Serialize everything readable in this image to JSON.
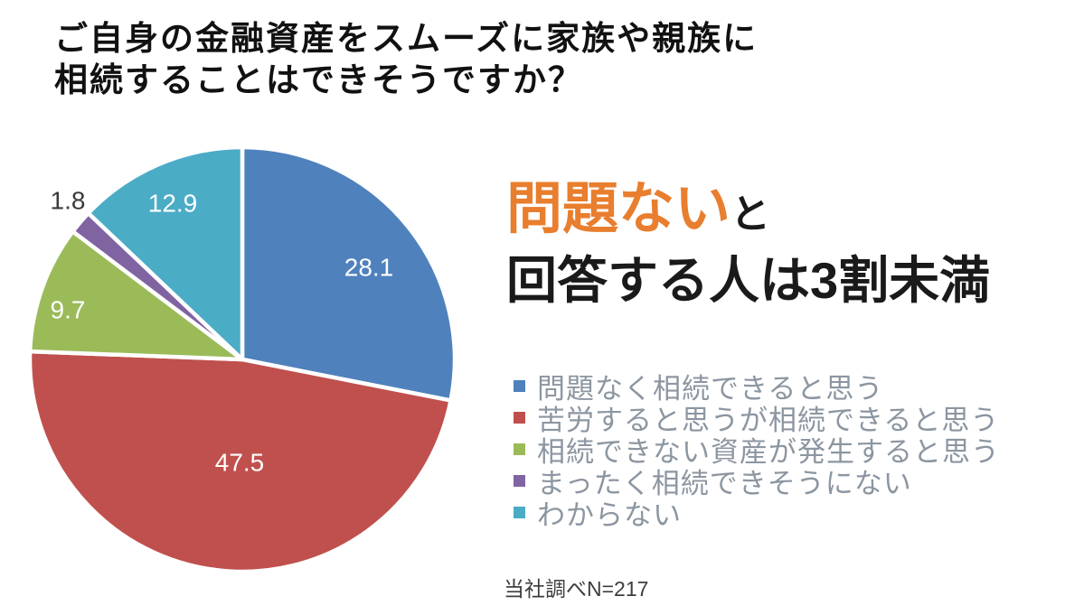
{
  "title": {
    "line1": "ご自身の金融資産をスムーズに家族や親族に",
    "line2": "相続することはできそうですか？"
  },
  "headline": {
    "highlight": "問題ない",
    "highlight_color": "#E87E2E",
    "connector": "と",
    "line2": "回答する人は3割未満"
  },
  "footnote": "当社調べN=217",
  "chart_data": {
    "type": "pie",
    "title": "ご自身の金融資産をスムーズに家族や親族に相続することはできそうですか？",
    "units": "percent",
    "start_angle_deg": 0,
    "direction": "clockwise",
    "legend_position": "right",
    "slice_border_color": "#ffffff",
    "slices": [
      {
        "label": "問題なく相続できると思う",
        "value": 28.1,
        "data_label": "28.1",
        "color": "#4F81BD",
        "data_label_color": "#ffffff",
        "label_inside": true
      },
      {
        "label": "苦労すると思うが相続できると思う",
        "value": 47.5,
        "data_label": "47.5",
        "color": "#C0504D",
        "data_label_color": "#ffffff",
        "label_inside": true
      },
      {
        "label": "相続できない資産が発生すると思う",
        "value": 9.7,
        "data_label": "9.7",
        "color": "#9BBB59",
        "data_label_color": "#ffffff",
        "label_inside": true
      },
      {
        "label": "まったく相続できそうにない",
        "value": 1.8,
        "data_label": "1.8",
        "color": "#8064A2",
        "data_label_color": "#3a3a3a",
        "label_inside": false
      },
      {
        "label": "わからない",
        "value": 12.9,
        "data_label": "12.9",
        "color": "#4BACC6",
        "data_label_color": "#ffffff",
        "label_inside": true
      }
    ]
  }
}
